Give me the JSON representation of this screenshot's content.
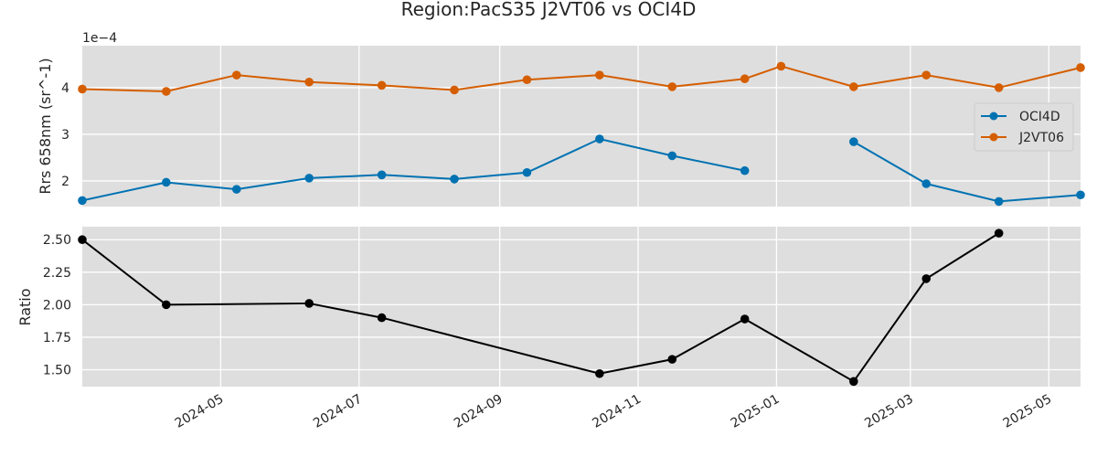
{
  "title": "Region:PacS35 J2VT06 vs OCI4D",
  "chart_data": [
    {
      "type": "line",
      "ylabel": "Rrs 658nm (sr^-1)",
      "offset_text": "1e−4",
      "yticks": [
        "2",
        "3",
        "4"
      ],
      "ylim": [
        1.45,
        4.9
      ],
      "xlim": [
        "2024-03-01",
        "2025-05-15"
      ],
      "grid": true,
      "legend_position": "right",
      "series": [
        {
          "name": "OCI4D",
          "color": "#0072b2",
          "x": [
            "2024-03-01",
            "2024-04-07",
            "2024-05-08",
            "2024-06-09",
            "2024-07-11",
            "2024-08-12",
            "2024-09-13",
            "2024-10-15",
            "2024-11-16",
            "2024-12-18",
            "2025-01-19",
            "2025-02-04",
            "2025-03-08",
            "2025-04-09",
            "2025-05-15"
          ],
          "y": [
            1.58,
            1.97,
            1.82,
            2.06,
            2.13,
            2.04,
            2.18,
            2.9,
            2.54,
            2.22,
            null,
            2.84,
            1.94,
            1.56,
            1.7
          ]
        },
        {
          "name": "J2VT06",
          "color": "#d55e00",
          "x": [
            "2024-03-01",
            "2024-04-07",
            "2024-05-08",
            "2024-06-09",
            "2024-07-11",
            "2024-08-12",
            "2024-09-13",
            "2024-10-15",
            "2024-11-16",
            "2024-12-18",
            "2025-01-03",
            "2025-02-04",
            "2025-03-08",
            "2025-04-09",
            "2025-05-15"
          ],
          "y": [
            3.97,
            3.92,
            4.27,
            4.12,
            4.05,
            3.95,
            4.17,
            4.27,
            4.02,
            4.19,
            4.46,
            4.02,
            4.27,
            4.0,
            4.43
          ]
        }
      ]
    },
    {
      "type": "line",
      "ylabel": "Ratio",
      "yticks": [
        "1.50",
        "1.75",
        "2.00",
        "2.25",
        "2.50"
      ],
      "ylim": [
        1.37,
        2.6
      ],
      "xlim": [
        "2024-03-01",
        "2025-05-15"
      ],
      "xticks": [
        "2024-05",
        "2024-07",
        "2024-09",
        "2024-11",
        "2025-01",
        "2025-03",
        "2025-05"
      ],
      "grid": true,
      "series": [
        {
          "color": "#000000",
          "x": [
            "2024-03-01",
            "2024-04-07",
            "2024-06-09",
            "2024-07-11",
            "2024-10-15",
            "2024-11-16",
            "2024-12-18",
            "2025-02-04",
            "2025-03-08",
            "2025-04-09"
          ],
          "y": [
            2.5,
            2.0,
            2.01,
            1.9,
            1.47,
            1.58,
            1.89,
            1.41,
            2.2,
            2.55
          ]
        }
      ]
    }
  ]
}
